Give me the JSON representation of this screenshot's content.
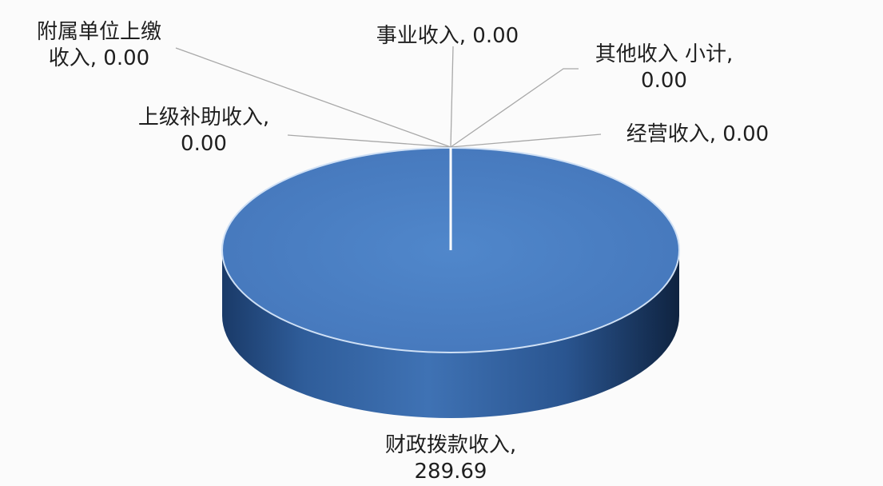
{
  "chart_data": {
    "type": "pie",
    "style": "3d",
    "categories": [
      "财政拨款收入",
      "事业收入",
      "其他收入 小计",
      "经营收入",
      "上级补助收入",
      "附属单位上缴收入"
    ],
    "values": [
      289.69,
      0.0,
      0.0,
      0.0,
      0.0,
      0.0
    ],
    "labels": [
      [
        "财政拨款收入,",
        "289.69"
      ],
      [
        "事业收入, 0.00"
      ],
      [
        "其他收入 小计,",
        "0.00"
      ],
      [
        "经营收入, 0.00"
      ],
      [
        "上级补助收入,",
        "0.00"
      ],
      [
        "附属单位上缴",
        "收入, 0.00"
      ]
    ],
    "colors": {
      "top": "#4a7cc0",
      "side_light": "#3f70b0",
      "side_dark": "#0f2340",
      "edge": "#cfe0f5",
      "leader": "#a8a8a8"
    },
    "legend": "none"
  }
}
